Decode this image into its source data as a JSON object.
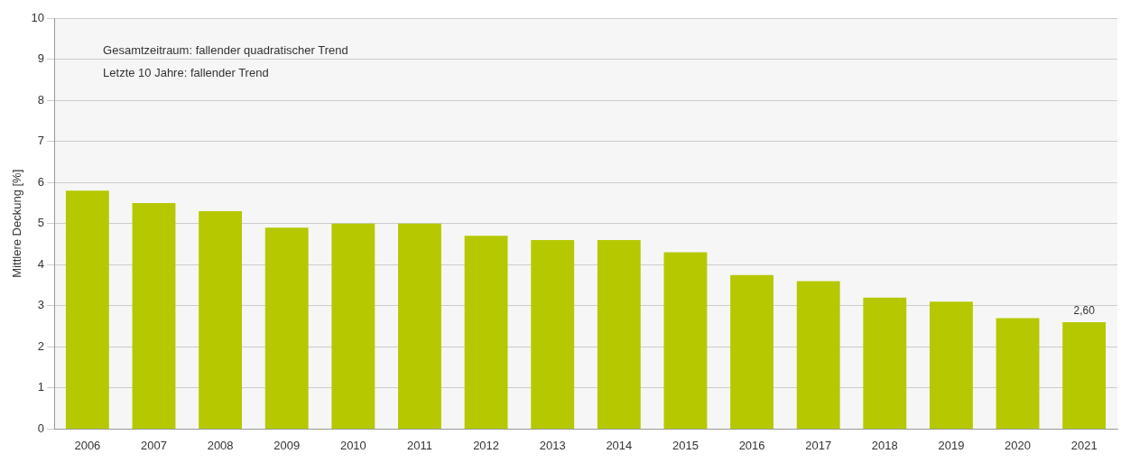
{
  "chart_data": {
    "type": "bar",
    "ylabel": "Mittlere Deckung [%]",
    "annotations": [
      "Gesamtzeitraum: fallender quadratischer Trend",
      "Letzte 10 Jahre: fallender Trend"
    ],
    "categories": [
      "2006",
      "2007",
      "2008",
      "2009",
      "2010",
      "2011",
      "2012",
      "2013",
      "2014",
      "2015",
      "2016",
      "2017",
      "2018",
      "2019",
      "2020",
      "2021"
    ],
    "values": [
      5.8,
      5.5,
      5.3,
      4.9,
      5.0,
      5.0,
      4.7,
      4.6,
      4.6,
      4.3,
      3.75,
      3.6,
      3.2,
      3.1,
      2.7,
      2.6
    ],
    "value_labels": [
      null,
      null,
      null,
      null,
      null,
      null,
      null,
      null,
      null,
      null,
      null,
      null,
      null,
      null,
      null,
      "2,60"
    ],
    "color": "#b5c800",
    "ylim": [
      0,
      10
    ],
    "yticks": [
      0,
      1,
      2,
      3,
      4,
      5,
      6,
      7,
      8,
      9,
      10
    ],
    "grid": "y",
    "legend": false
  }
}
